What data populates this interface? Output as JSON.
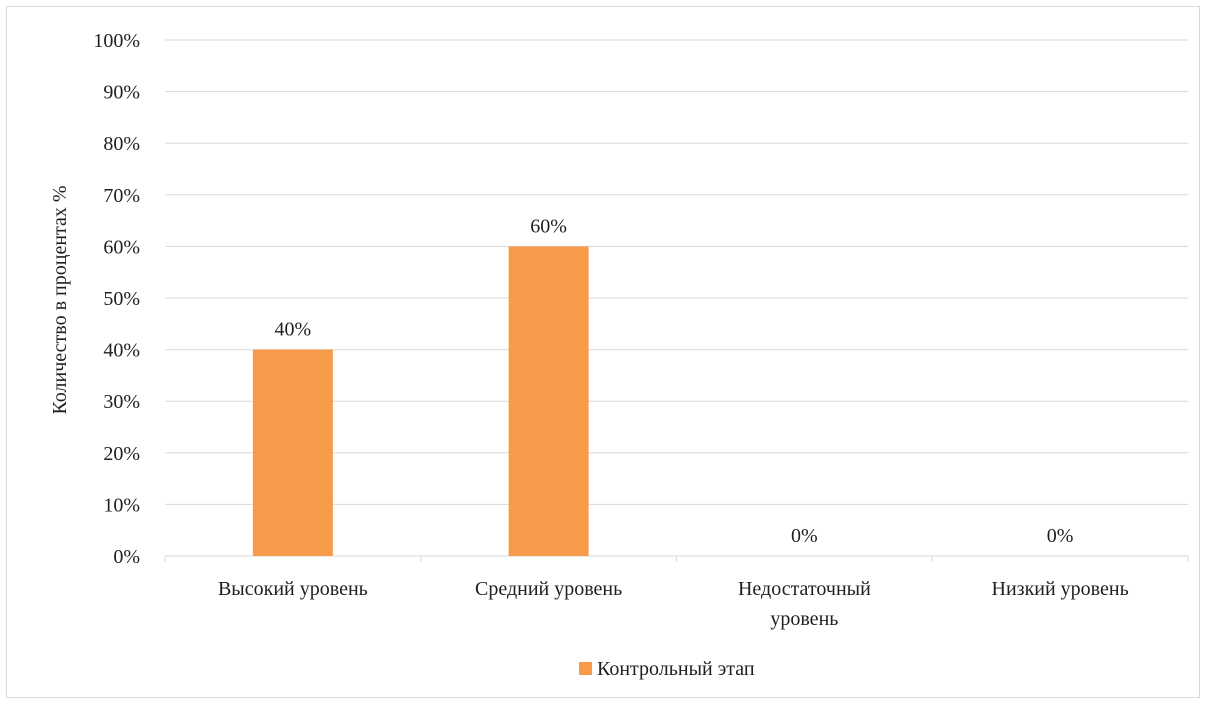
{
  "chart_data": {
    "type": "bar",
    "title": "",
    "xlabel": "",
    "ylabel": "Количество в процентах %",
    "categories": [
      [
        "Высокий уровень"
      ],
      [
        "Средний уровень"
      ],
      [
        "Недостаточный",
        "уровень"
      ],
      [
        "Низкий уровень"
      ]
    ],
    "series": [
      {
        "name": "Контрольный этап",
        "values": [
          40,
          60,
          0,
          0
        ],
        "data_labels": [
          "40%",
          "60%",
          "0%",
          "0%"
        ],
        "color": "#f79a4a"
      }
    ],
    "ylim": [
      0,
      100
    ],
    "yticks": [
      0,
      10,
      20,
      30,
      40,
      50,
      60,
      70,
      80,
      90,
      100
    ],
    "ytick_labels": [
      "0%",
      "10%",
      "20%",
      "30%",
      "40%",
      "50%",
      "60%",
      "70%",
      "80%",
      "90%",
      "100%"
    ],
    "grid": true,
    "legend_position": "bottom",
    "colors": {
      "grid": "#d9d9d9",
      "axis": "#d9d9d9"
    }
  }
}
